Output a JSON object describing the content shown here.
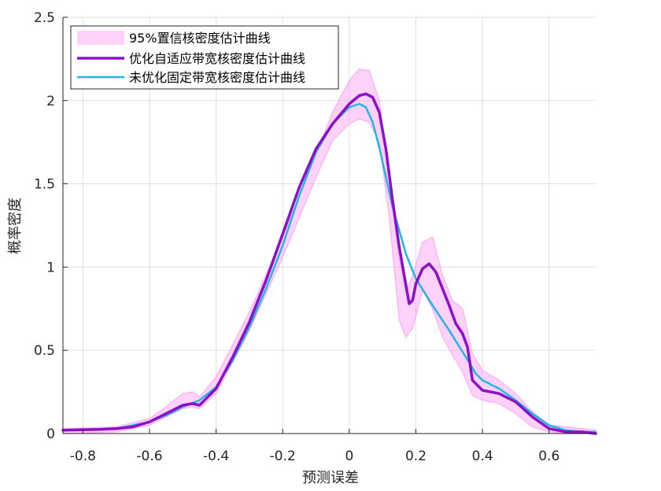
{
  "chart_data": {
    "type": "area",
    "title": "",
    "xlabel": "预测误差",
    "ylabel": "概率密度",
    "xlim": [
      -0.86,
      0.74
    ],
    "ylim": [
      0,
      2.5
    ],
    "x_ticks": [
      -0.8,
      -0.6,
      -0.4,
      -0.2,
      0,
      0.2,
      0.4,
      0.6
    ],
    "x_tick_labels": [
      "-0.8",
      "-0.6",
      "-0.4",
      "-0.2",
      "0",
      "0.2",
      "0.4",
      "0.6"
    ],
    "y_ticks": [
      0,
      0.5,
      1,
      1.5,
      2,
      2.5
    ],
    "y_tick_labels": [
      "0",
      "0.5",
      "1",
      "1.5",
      "2",
      "2.5"
    ],
    "grid": true,
    "legend_position": "top-left",
    "band": {
      "name": "95%置信核密度估计曲线",
      "color": "#ff9cf2",
      "x": [
        -0.86,
        -0.7,
        -0.6,
        -0.55,
        -0.5,
        -0.47,
        -0.45,
        -0.4,
        -0.3,
        -0.2,
        -0.1,
        -0.05,
        0.0,
        0.03,
        0.06,
        0.09,
        0.12,
        0.15,
        0.17,
        0.19,
        0.22,
        0.25,
        0.28,
        0.31,
        0.34,
        0.37,
        0.4,
        0.45,
        0.5,
        0.55,
        0.6,
        0.65,
        0.7,
        0.74
      ],
      "upper": [
        0.03,
        0.04,
        0.09,
        0.16,
        0.24,
        0.25,
        0.22,
        0.34,
        0.73,
        1.18,
        1.68,
        1.93,
        2.12,
        2.19,
        2.18,
        2.0,
        1.52,
        1.05,
        0.85,
        0.95,
        1.15,
        1.18,
        0.95,
        0.8,
        0.75,
        0.48,
        0.38,
        0.32,
        0.24,
        0.13,
        0.05,
        0.04,
        0.03,
        0.02
      ],
      "lower": [
        0.0,
        0.01,
        0.05,
        0.1,
        0.15,
        0.16,
        0.15,
        0.24,
        0.62,
        1.06,
        1.54,
        1.76,
        1.86,
        1.89,
        1.87,
        1.75,
        1.3,
        0.68,
        0.58,
        0.63,
        0.86,
        0.75,
        0.58,
        0.47,
        0.37,
        0.23,
        0.2,
        0.18,
        0.12,
        0.04,
        0.01,
        0.0,
        0.0,
        0.0
      ]
    },
    "series": [
      {
        "name": "优化自适应带宽核密度估计曲线",
        "color": "#8b10c7",
        "width": 3.5,
        "x": [
          -0.86,
          -0.75,
          -0.7,
          -0.65,
          -0.6,
          -0.55,
          -0.5,
          -0.47,
          -0.45,
          -0.4,
          -0.35,
          -0.3,
          -0.25,
          -0.2,
          -0.15,
          -0.1,
          -0.05,
          0.0,
          0.03,
          0.05,
          0.07,
          0.09,
          0.11,
          0.13,
          0.15,
          0.165,
          0.18,
          0.19,
          0.2,
          0.22,
          0.24,
          0.26,
          0.28,
          0.3,
          0.32,
          0.34,
          0.355,
          0.37,
          0.4,
          0.45,
          0.5,
          0.55,
          0.6,
          0.65,
          0.7,
          0.74
        ],
        "y": [
          0.02,
          0.025,
          0.03,
          0.04,
          0.07,
          0.12,
          0.17,
          0.18,
          0.17,
          0.27,
          0.46,
          0.67,
          0.92,
          1.2,
          1.48,
          1.71,
          1.86,
          1.98,
          2.03,
          2.04,
          2.02,
          1.93,
          1.71,
          1.4,
          1.12,
          0.95,
          0.78,
          0.8,
          0.9,
          0.99,
          1.02,
          0.97,
          0.87,
          0.77,
          0.66,
          0.6,
          0.52,
          0.32,
          0.26,
          0.24,
          0.19,
          0.1,
          0.03,
          0.01,
          0.01,
          0.0
        ]
      },
      {
        "name": "未优化固定带宽核密度估计曲线",
        "color": "#22b5e4",
        "width": 2.5,
        "x": [
          -0.86,
          -0.7,
          -0.6,
          -0.55,
          -0.5,
          -0.45,
          -0.4,
          -0.35,
          -0.3,
          -0.25,
          -0.2,
          -0.15,
          -0.1,
          -0.05,
          0.0,
          0.03,
          0.05,
          0.07,
          0.09,
          0.11,
          0.13,
          0.15,
          0.17,
          0.2,
          0.25,
          0.3,
          0.35,
          0.38,
          0.4,
          0.45,
          0.5,
          0.55,
          0.6,
          0.65,
          0.7,
          0.74
        ],
        "y": [
          0.02,
          0.03,
          0.07,
          0.11,
          0.16,
          0.2,
          0.28,
          0.44,
          0.64,
          0.87,
          1.13,
          1.43,
          1.69,
          1.86,
          1.96,
          1.98,
          1.96,
          1.87,
          1.72,
          1.54,
          1.36,
          1.22,
          1.08,
          0.93,
          0.77,
          0.62,
          0.46,
          0.36,
          0.32,
          0.27,
          0.2,
          0.12,
          0.05,
          0.02,
          0.01,
          0.01
        ]
      }
    ]
  }
}
